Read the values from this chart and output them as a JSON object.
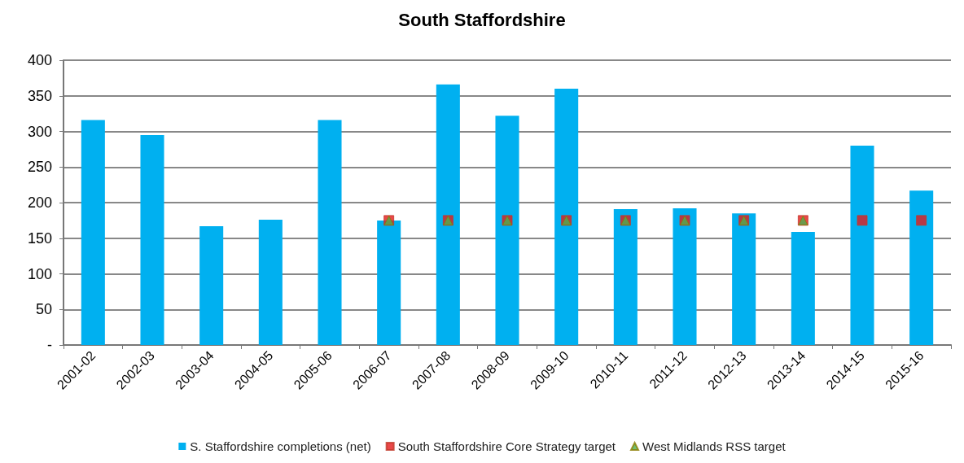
{
  "chart_data": {
    "type": "bar",
    "title": "South Staffordshire",
    "categories": [
      "2001-02",
      "2002-03",
      "2003-04",
      "2004-05",
      "2005-06",
      "2006-07",
      "2007-08",
      "2008-09",
      "2009-10",
      "2010-11",
      "2011-12",
      "2012-13",
      "2013-14",
      "2014-15",
      "2015-16"
    ],
    "series": [
      {
        "name": "S. Staffordshire completions (net)",
        "color": "#00b0f0",
        "values": [
          316,
          295,
          167,
          176,
          316,
          175,
          366,
          322,
          360,
          191,
          192,
          185,
          159,
          280,
          217
        ]
      },
      {
        "name": "South Staffordshire Core Strategy target",
        "type": "scatter",
        "marker": "square",
        "color": "#e31a1c",
        "values": [
          null,
          null,
          null,
          null,
          null,
          175,
          175,
          175,
          175,
          175,
          175,
          175,
          175,
          175,
          175
        ]
      },
      {
        "name": "West Midlands RSS target",
        "type": "scatter",
        "marker": "triangle",
        "color": "#4caf50",
        "values": [
          null,
          null,
          null,
          null,
          null,
          175,
          175,
          175,
          175,
          175,
          175,
          175,
          175,
          null,
          null
        ]
      }
    ],
    "ylim": [
      0,
      400
    ],
    "yticks": [
      {
        "value": 0,
        "label": "-"
      },
      50,
      100,
      150,
      200,
      250,
      300,
      350,
      400
    ],
    "grid": "y",
    "legend": "bottom"
  }
}
